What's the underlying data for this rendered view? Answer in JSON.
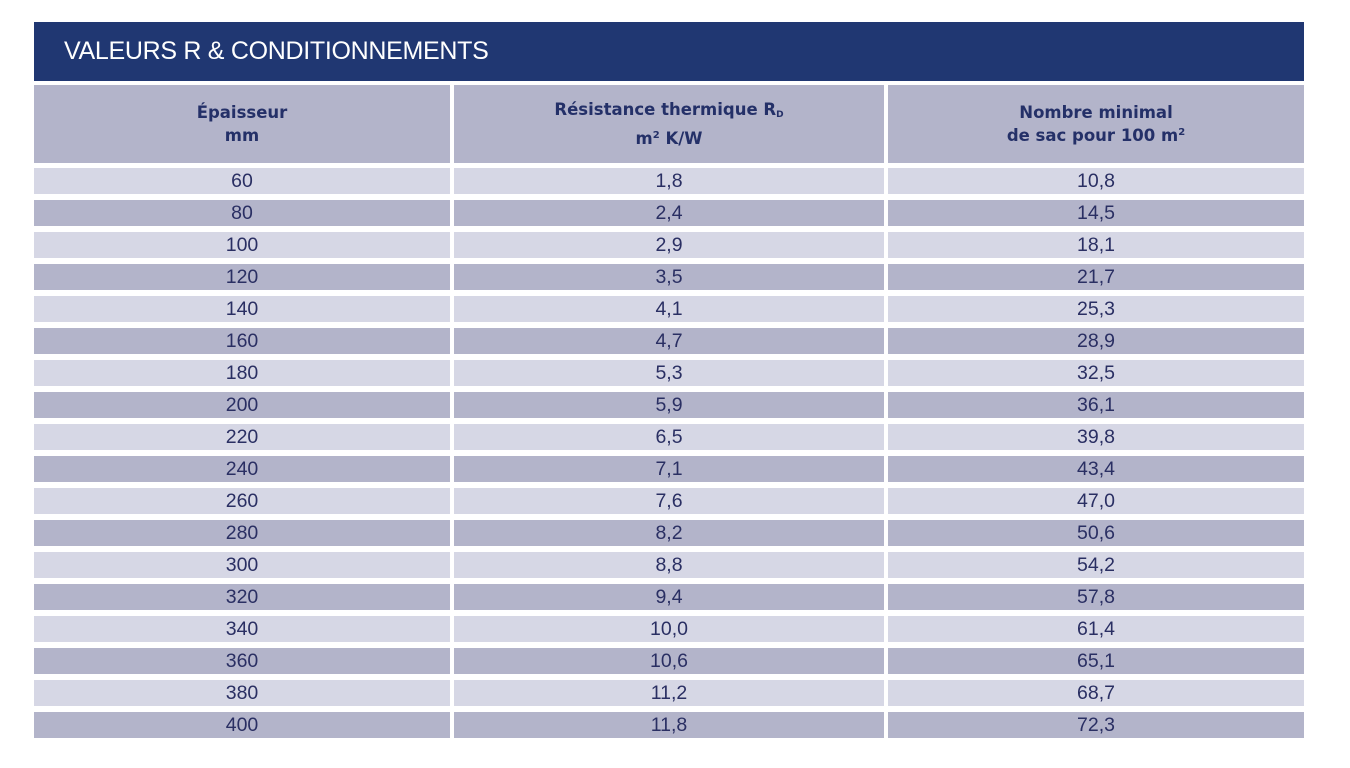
{
  "title": "VALEURS R & CONDITIONNEMENTS",
  "headers": {
    "col1_line1": "Épaisseur",
    "col1_line2": "mm",
    "col2_line1": "Résistance thermique R",
    "col2_sub": "D",
    "col2_line2_pre": "m",
    "col2_line2_sup": "2",
    "col2_line2_post": " K/W",
    "col3_line1": "Nombre minimal",
    "col3_line2_pre": "de sac pour 100 m",
    "col3_line2_sup": "2"
  },
  "rows": [
    [
      "60",
      "1,8",
      "10,8"
    ],
    [
      "80",
      "2,4",
      "14,5"
    ],
    [
      "100",
      "2,9",
      "18,1"
    ],
    [
      "120",
      "3,5",
      "21,7"
    ],
    [
      "140",
      "4,1",
      "25,3"
    ],
    [
      "160",
      "4,7",
      "28,9"
    ],
    [
      "180",
      "5,3",
      "32,5"
    ],
    [
      "200",
      "5,9",
      "36,1"
    ],
    [
      "220",
      "6,5",
      "39,8"
    ],
    [
      "240",
      "7,1",
      "43,4"
    ],
    [
      "260",
      "7,6",
      "47,0"
    ],
    [
      "280",
      "8,2",
      "50,6"
    ],
    [
      "300",
      "8,8",
      "54,2"
    ],
    [
      "320",
      "9,4",
      "57,8"
    ],
    [
      "340",
      "10,0",
      "61,4"
    ],
    [
      "360",
      "10,6",
      "65,1"
    ],
    [
      "380",
      "11,2",
      "68,7"
    ],
    [
      "400",
      "11,8",
      "72,3"
    ]
  ],
  "colors": {
    "title_bg": "#203772",
    "header_bg": "#b3b4ca",
    "row_light": "#d6d7e5",
    "row_dark": "#b3b4ca",
    "text": "#2a2f63"
  }
}
